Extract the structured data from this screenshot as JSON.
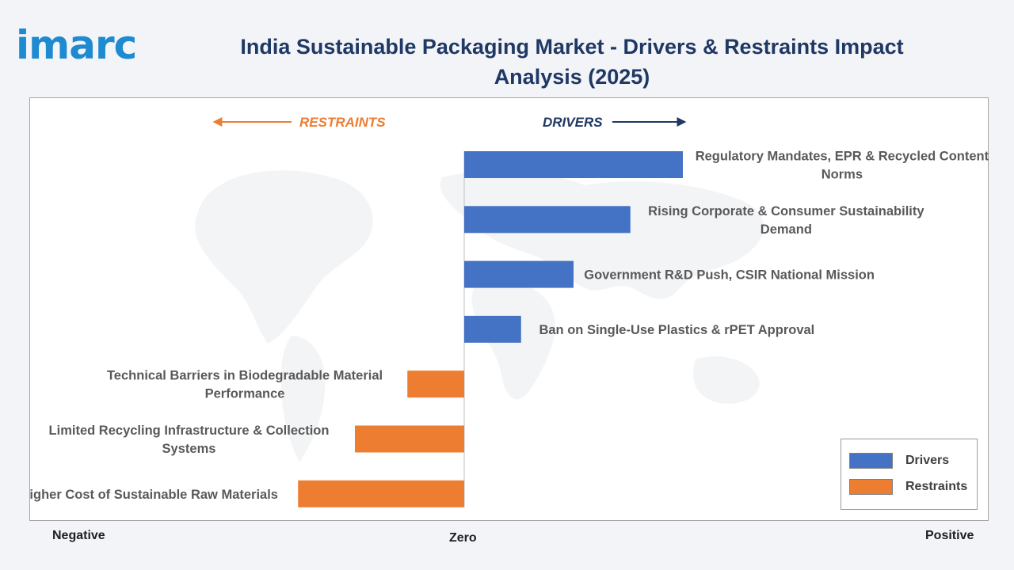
{
  "header": {
    "logo_text": "imarc",
    "title": "India Sustainable Packaging Market - Drivers & Restraints Impact Analysis (2025)"
  },
  "colors": {
    "drivers": "#4472c4",
    "restraints": "#ed7d31",
    "title": "#1f3864",
    "logo": "#1e8ad0"
  },
  "chart_data": {
    "type": "bar",
    "orientation": "horizontal",
    "title": "India Sustainable Packaging Market - Drivers & Restraints Impact Analysis (2025)",
    "direction_labels": {
      "left": "RESTRAINTS",
      "right": "DRIVERS"
    },
    "axis_labels": {
      "left": "Negative",
      "center": "Zero",
      "right": "Positive"
    },
    "xlim": [
      -1,
      1
    ],
    "legend_position": "bottom-right",
    "legend": [
      {
        "name": "Drivers",
        "color": "#4472c4"
      },
      {
        "name": "Restraints",
        "color": "#ed7d31"
      }
    ],
    "categories": [
      "Regulatory Mandates, EPR & Recycled Content Norms",
      "Rising Corporate & Consumer Sustainability Demand",
      "Government R&D Push, CSIR National Mission",
      "Ban on Single-Use Plastics & rPET Approval",
      "Technical Barriers in Biodegradable Material Performance",
      "Limited Recycling Infrastructure & Collection Systems",
      "Higher Cost of Sustainable Raw Materials"
    ],
    "series": [
      {
        "name": "Drivers",
        "values": [
          0.5,
          0.38,
          0.25,
          0.13,
          0,
          0,
          0
        ]
      },
      {
        "name": "Restraints",
        "values": [
          0,
          0,
          0,
          0,
          -0.13,
          -0.25,
          -0.38
        ]
      }
    ]
  }
}
